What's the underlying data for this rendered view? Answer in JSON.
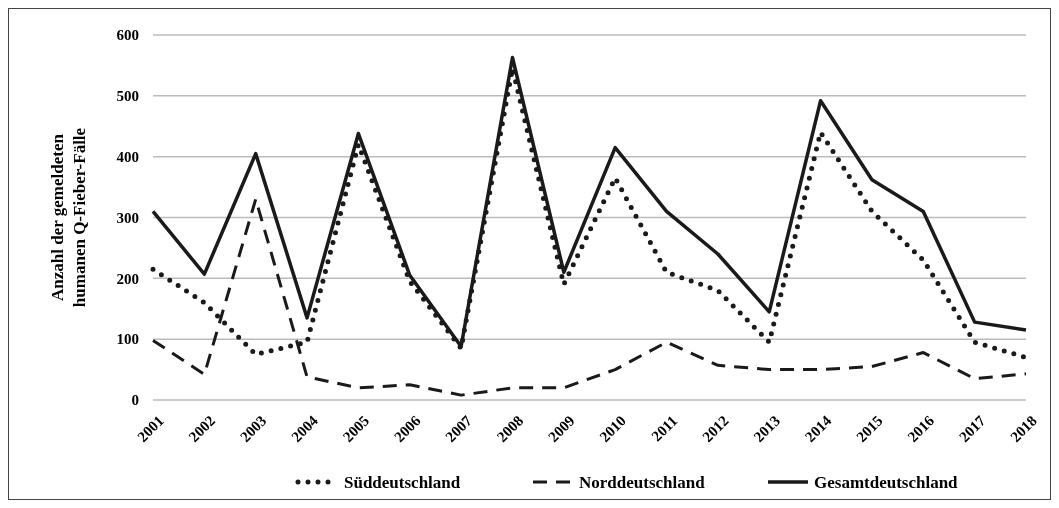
{
  "chart_data": {
    "type": "line",
    "ylabel": "Anzahl der gemeldeten humanen Q-Fieber-Fälle",
    "categories": [
      "2001",
      "2002",
      "2003",
      "2004",
      "2005",
      "2006",
      "2007",
      "2008",
      "2009",
      "2010",
      "2011",
      "2012",
      "2013",
      "2014",
      "2015",
      "2016",
      "2017",
      "2018"
    ],
    "series": [
      {
        "name": "Süddeutschland",
        "color": "#1a1a1a",
        "line_style": "dotted",
        "values": [
          215,
          160,
          75,
          95,
          420,
          195,
          85,
          545,
          190,
          365,
          210,
          180,
          95,
          440,
          310,
          230,
          95,
          70
        ]
      },
      {
        "name": "Norddeutschland",
        "color": "#1a1a1a",
        "line_style": "dashed",
        "values": [
          98,
          42,
          330,
          38,
          20,
          25,
          8,
          20,
          20,
          50,
          95,
          57,
          50,
          50,
          55,
          78,
          35,
          43
        ]
      },
      {
        "name": "Gesamtdeutschland",
        "color": "#1a1a1a",
        "line_style": "solid",
        "values": [
          310,
          207,
          405,
          135,
          438,
          205,
          88,
          563,
          210,
          415,
          310,
          240,
          145,
          492,
          362,
          310,
          128,
          115
        ]
      }
    ],
    "ylim": [
      0,
      600
    ],
    "yticks": [
      0,
      100,
      200,
      300,
      400,
      500,
      600
    ],
    "grid": "y",
    "legend": "bottom"
  }
}
